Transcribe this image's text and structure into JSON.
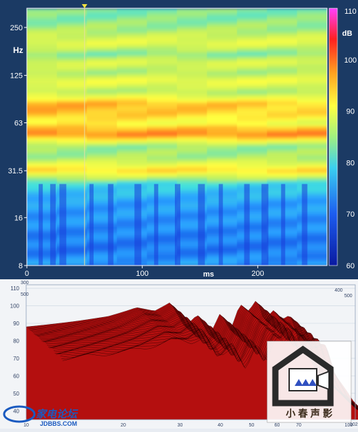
{
  "colors": {
    "panel_bg": "#1b3a64",
    "axis_text": "#ffffff",
    "cursor": "#e8e0a0",
    "waterfall_fill": "#b40f0f",
    "waterfall_line": "#2a0000",
    "grid": "#c9d3df"
  },
  "colormap": [
    "#0a1aa0",
    "#1040e0",
    "#2aa0ff",
    "#40e0e0",
    "#c0f060",
    "#ffff40",
    "#ffa020",
    "#ff2020",
    "#ff40ff"
  ],
  "chart_data": [
    {
      "type": "heatmap",
      "xlabel": "ms",
      "ylabel": "Hz",
      "x_ticks": [
        0,
        100,
        200
      ],
      "xlim": [
        0,
        260
      ],
      "y_scale": "log",
      "y_ticks": [
        8,
        16,
        31.5,
        63,
        125,
        250
      ],
      "ylim": [
        8,
        330
      ],
      "cursor_ms": 50,
      "colorbar": {
        "label": "dB",
        "range": [
          60,
          110
        ],
        "ticks": [
          60,
          70,
          80,
          90,
          100,
          110
        ]
      },
      "level_profile_db": [
        {
          "hz": 8,
          "db": 73
        },
        {
          "hz": 10,
          "db": 70
        },
        {
          "hz": 13,
          "db": 71
        },
        {
          "hz": 16,
          "db": 72
        },
        {
          "hz": 20,
          "db": 73
        },
        {
          "hz": 26,
          "db": 78
        },
        {
          "hz": 31.5,
          "db": 94
        },
        {
          "hz": 38,
          "db": 84
        },
        {
          "hz": 45,
          "db": 83
        },
        {
          "hz": 53,
          "db": 99
        },
        {
          "hz": 63,
          "db": 92
        },
        {
          "hz": 72,
          "db": 96
        },
        {
          "hz": 83,
          "db": 97
        },
        {
          "hz": 100,
          "db": 85
        },
        {
          "hz": 115,
          "db": 90
        },
        {
          "hz": 130,
          "db": 84
        },
        {
          "hz": 150,
          "db": 88
        },
        {
          "hz": 170,
          "db": 82
        },
        {
          "hz": 200,
          "db": 89
        },
        {
          "hz": 240,
          "db": 84
        },
        {
          "hz": 290,
          "db": 82
        }
      ]
    },
    {
      "type": "area",
      "x_ticks": [
        10,
        20,
        30,
        40,
        50,
        60,
        70,
        100
      ],
      "xlim": [
        10,
        100
      ],
      "y_ticks": [
        40,
        50,
        60,
        70,
        80,
        90,
        100,
        110
      ],
      "ylim": [
        35,
        112
      ],
      "marker_labels": [
        "300",
        "400",
        "500",
        "500",
        "102"
      ],
      "front_profile": [
        {
          "x": 10,
          "y": 88
        },
        {
          "x": 14,
          "y": 91
        },
        {
          "x": 18,
          "y": 94
        },
        {
          "x": 22,
          "y": 99
        },
        {
          "x": 25,
          "y": 97
        },
        {
          "x": 28,
          "y": 102
        },
        {
          "x": 31,
          "y": 88
        },
        {
          "x": 34,
          "y": 95
        },
        {
          "x": 37,
          "y": 83
        },
        {
          "x": 40,
          "y": 96
        },
        {
          "x": 43,
          "y": 86
        },
        {
          "x": 46,
          "y": 101
        },
        {
          "x": 49,
          "y": 97
        },
        {
          "x": 52,
          "y": 104
        },
        {
          "x": 55,
          "y": 90
        },
        {
          "x": 58,
          "y": 98
        },
        {
          "x": 62,
          "y": 92
        },
        {
          "x": 66,
          "y": 95
        },
        {
          "x": 70,
          "y": 80
        },
        {
          "x": 80,
          "y": 62
        },
        {
          "x": 100,
          "y": 45
        }
      ]
    }
  ],
  "watermarks": {
    "top_site": "家电论坛",
    "top_domain": "JDBBS.COM",
    "brand": "小 春 声 影"
  }
}
